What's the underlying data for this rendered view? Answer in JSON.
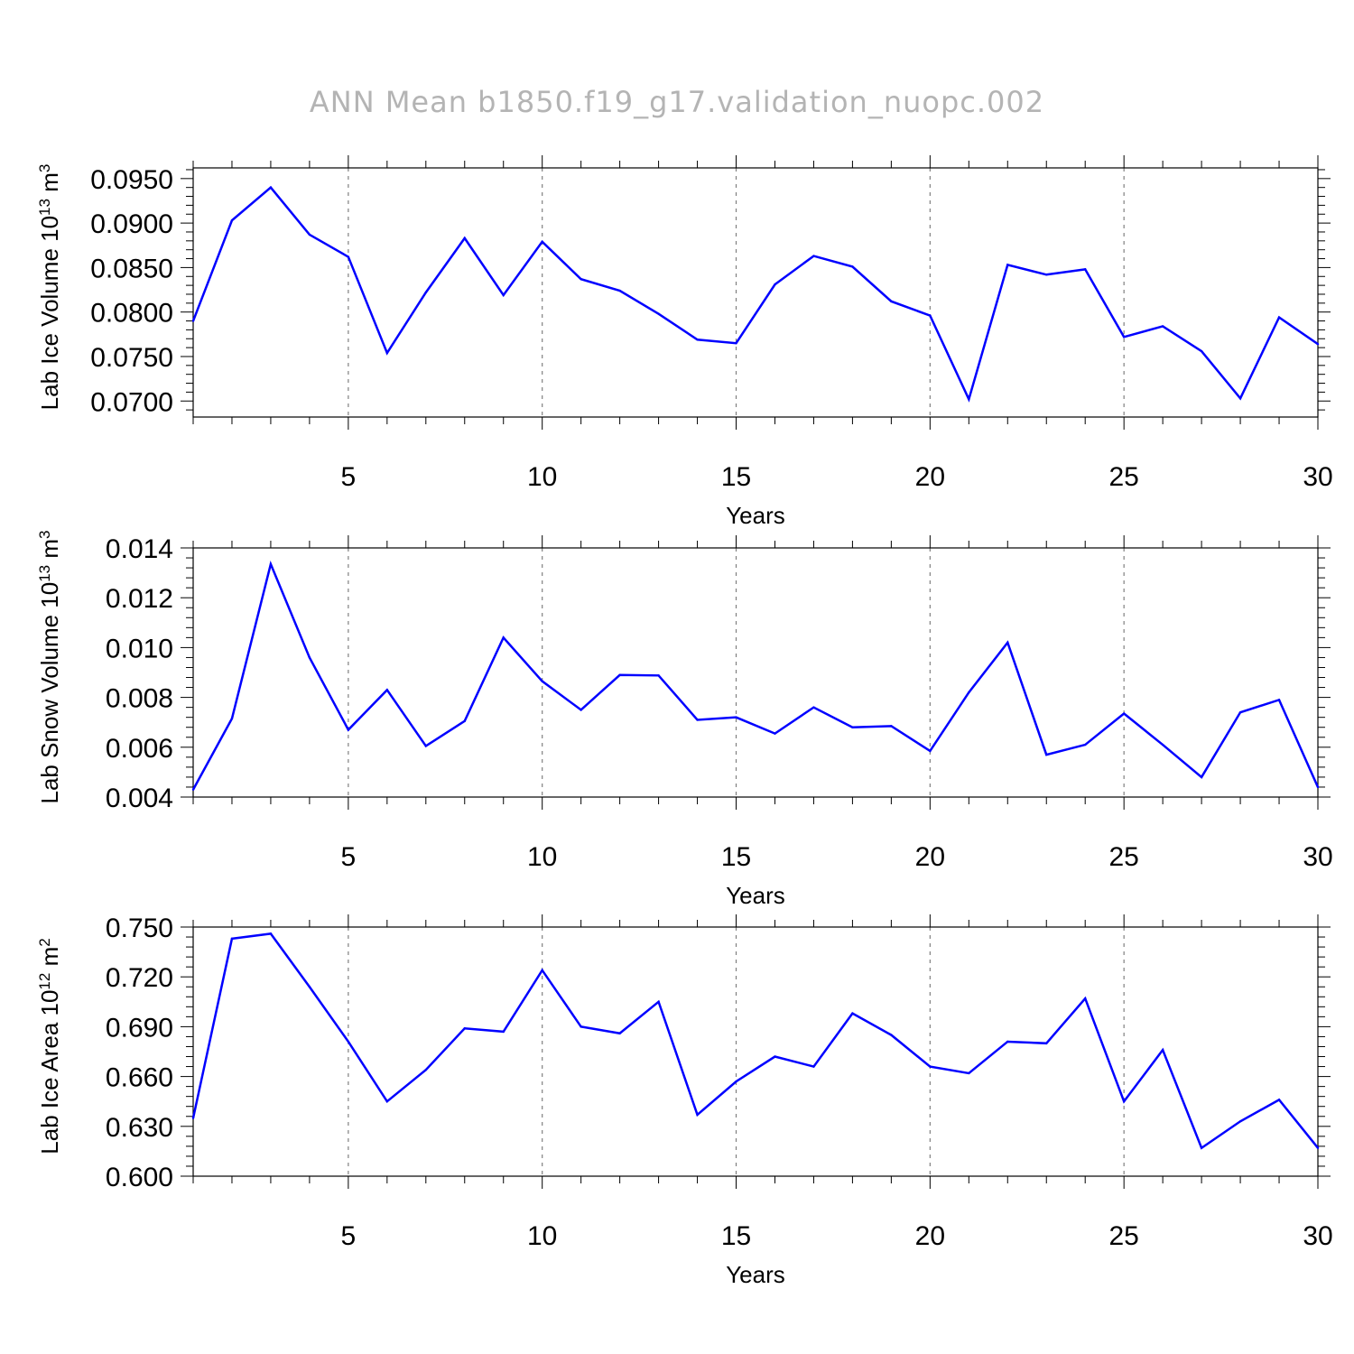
{
  "title": "ANN Mean b1850.f19_g17.validation_nuopc.002",
  "colors": {
    "line": "#0000ff",
    "title": "#b4b4b4"
  },
  "chart_data": [
    {
      "type": "line",
      "ylabel": {
        "base": "Lab Ice Volume 10",
        "exp1": "13",
        "unit": " m",
        "exp2": "3"
      },
      "xlabel": "Years",
      "xlim": [
        1,
        30
      ],
      "ylim": [
        0.0682,
        0.0962
      ],
      "xticks": [
        "5",
        "10",
        "15",
        "20",
        "25",
        "30"
      ],
      "yticks": [
        "0.0700",
        "0.0750",
        "0.0800",
        "0.0850",
        "0.0900",
        "0.0950"
      ],
      "x": [
        1,
        2,
        3,
        4,
        5,
        6,
        7,
        8,
        9,
        10,
        11,
        12,
        13,
        14,
        15,
        16,
        17,
        18,
        19,
        20,
        21,
        22,
        23,
        24,
        25,
        26,
        27,
        28,
        29,
        30
      ],
      "values": [
        0.079,
        0.0903,
        0.094,
        0.0887,
        0.0862,
        0.0754,
        0.0822,
        0.0883,
        0.0819,
        0.0879,
        0.0837,
        0.0824,
        0.0798,
        0.0769,
        0.0765,
        0.0831,
        0.0863,
        0.0851,
        0.0812,
        0.0796,
        0.0702,
        0.0853,
        0.0842,
        0.0848,
        0.0772,
        0.0784,
        0.0756,
        0.0703,
        0.0794,
        0.0764
      ]
    },
    {
      "type": "line",
      "ylabel": {
        "base": "Lab Snow Volume 10",
        "exp1": "13",
        "unit": " m",
        "exp2": "3"
      },
      "xlabel": "Years",
      "xlim": [
        1,
        30
      ],
      "ylim": [
        0.004,
        0.014
      ],
      "xticks": [
        "5",
        "10",
        "15",
        "20",
        "25",
        "30"
      ],
      "yticks": [
        "0.004",
        "0.006",
        "0.008",
        "0.010",
        "0.012",
        "0.014"
      ],
      "x": [
        1,
        2,
        3,
        4,
        5,
        6,
        7,
        8,
        9,
        10,
        11,
        12,
        13,
        14,
        15,
        16,
        17,
        18,
        19,
        20,
        21,
        22,
        23,
        24,
        25,
        26,
        27,
        28,
        29,
        30
      ],
      "values": [
        0.0043,
        0.00715,
        0.01335,
        0.0096,
        0.0067,
        0.0083,
        0.00605,
        0.00705,
        0.0104,
        0.00865,
        0.0075,
        0.0089,
        0.00888,
        0.0071,
        0.0072,
        0.00655,
        0.0076,
        0.0068,
        0.00685,
        0.00585,
        0.0082,
        0.0102,
        0.0057,
        0.0061,
        0.00735,
        0.0061,
        0.0048,
        0.0074,
        0.0079,
        0.0044
      ]
    },
    {
      "type": "line",
      "ylabel": {
        "base": "Lab Ice Area 10",
        "exp1": "12",
        "unit": " m",
        "exp2": "2"
      },
      "xlabel": "Years",
      "xlim": [
        1,
        30
      ],
      "ylim": [
        0.6,
        0.75
      ],
      "xticks": [
        "5",
        "10",
        "15",
        "20",
        "25",
        "30"
      ],
      "yticks": [
        "0.600",
        "0.630",
        "0.660",
        "0.690",
        "0.720",
        "0.750"
      ],
      "x": [
        1,
        2,
        3,
        4,
        5,
        6,
        7,
        8,
        9,
        10,
        11,
        12,
        13,
        14,
        15,
        16,
        17,
        18,
        19,
        20,
        21,
        22,
        23,
        24,
        25,
        26,
        27,
        28,
        29,
        30
      ],
      "values": [
        0.635,
        0.743,
        0.746,
        0.714,
        0.681,
        0.645,
        0.664,
        0.689,
        0.687,
        0.724,
        0.69,
        0.686,
        0.705,
        0.637,
        0.657,
        0.672,
        0.666,
        0.698,
        0.685,
        0.666,
        0.662,
        0.681,
        0.68,
        0.707,
        0.645,
        0.676,
        0.617,
        0.633,
        0.646,
        0.617
      ]
    }
  ]
}
